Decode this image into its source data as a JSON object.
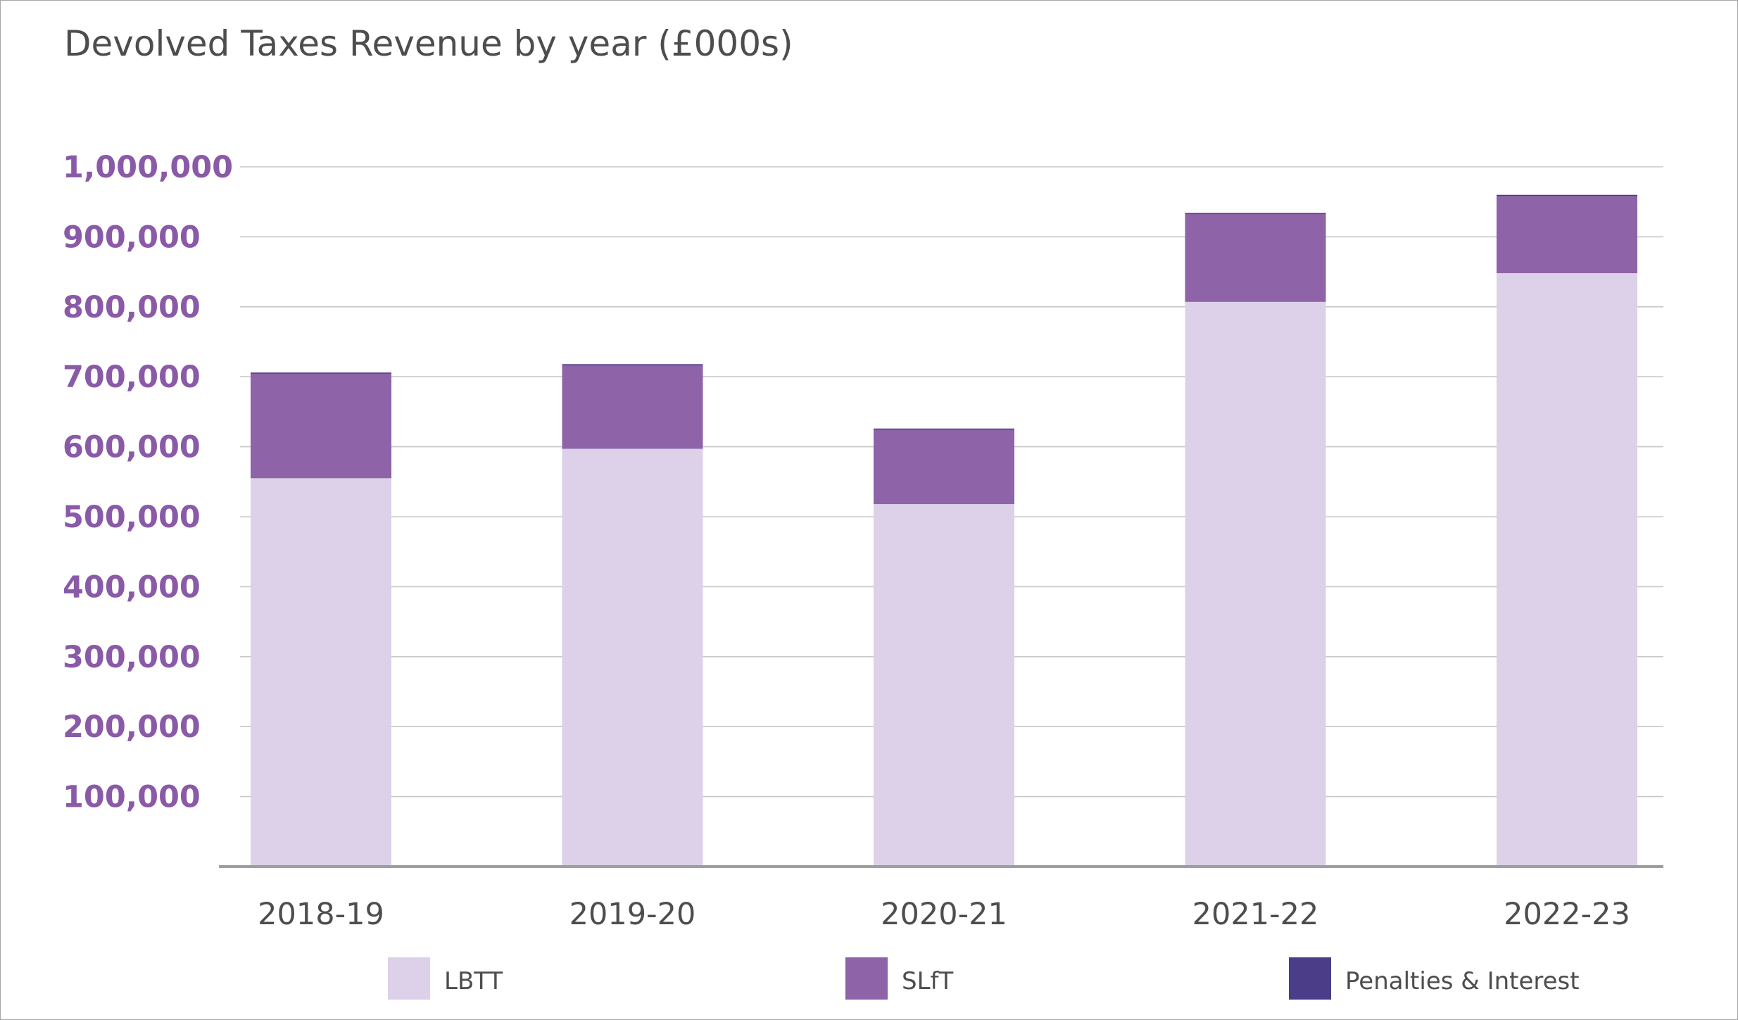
{
  "chart_data": {
    "type": "bar",
    "stacked": true,
    "title": "Devolved Taxes Revenue by year (£000s)",
    "xlabel": "",
    "ylabel": "",
    "categories": [
      "2018-19",
      "2019-20",
      "2020-21",
      "2021-22",
      "2022-23"
    ],
    "series": [
      {
        "name": "LBTT",
        "color": "#dcd1e8",
        "values": [
          555000,
          597000,
          518000,
          807000,
          848000
        ]
      },
      {
        "name": "SLfT",
        "color": "#8e63a7",
        "values": [
          150000,
          120000,
          107000,
          126000,
          110000
        ]
      },
      {
        "name": "Penalties & Interest",
        "color": "#4c3d88",
        "values": [
          1000,
          1000,
          1000,
          1000,
          2000
        ]
      }
    ],
    "ylim": [
      0,
      1000000
    ],
    "yticks": [
      {
        "value": 100000,
        "label": "100,000"
      },
      {
        "value": 200000,
        "label": "200,000"
      },
      {
        "value": 300000,
        "label": "300,000"
      },
      {
        "value": 400000,
        "label": "400,000"
      },
      {
        "value": 500000,
        "label": "500,000"
      },
      {
        "value": 600000,
        "label": "600,000"
      },
      {
        "value": 700000,
        "label": "700,000"
      },
      {
        "value": 800000,
        "label": "800,000"
      },
      {
        "value": 900000,
        "label": "900,000"
      },
      {
        "value": 1000000,
        "label": "1,000,000"
      }
    ],
    "grid": true,
    "legend_position": "bottom"
  }
}
